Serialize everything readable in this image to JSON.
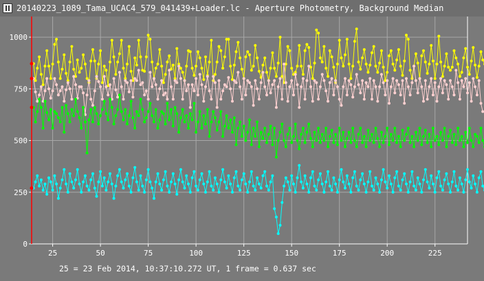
{
  "window": {
    "title": "20140223_1089_Tama_UCAC4_579_041439+Loader.lc - Aperture Photometry, Background Median",
    "icon": "lightcurve-app-icon"
  },
  "footer": {
    "text": "25 = 23 Feb 2014, 10:37:10.272 UT, 1 frame = 0.637 sec"
  },
  "colors": {
    "background": "#7a7a7a",
    "grid": "#a8a8a8",
    "axis": "#ffffff",
    "cursor_line": "#ff0000"
  },
  "chart_data": {
    "type": "line",
    "title": "",
    "xlabel": "",
    "ylabel": "",
    "xlim": [
      14,
      242
    ],
    "ylim": [
      0,
      1100
    ],
    "grid": true,
    "x_ticks": [
      25,
      50,
      75,
      100,
      125,
      150,
      175,
      200,
      225
    ],
    "y_ticks": [
      0,
      250,
      500,
      750,
      1000
    ],
    "series": [
      {
        "color": "#ffff00",
        "x_start": 15,
        "values": [
          872,
          790,
          850,
          905,
          820,
          770,
          860,
          935,
          860,
          800,
          870,
          965,
          990,
          880,
          800,
          845,
          915,
          825,
          790,
          880,
          955,
          845,
          810,
          890,
          830,
          850,
          915,
          870,
          800,
          780,
          885,
          940,
          885,
          800,
          870,
          935,
          780,
          860,
          840,
          765,
          880,
          985,
          905,
          820,
          880,
          920,
          985,
          850,
          800,
          870,
          955,
          835,
          790,
          900,
          865,
          985,
          905,
          840,
          835,
          905,
          1010,
          990,
          880,
          800,
          850,
          870,
          940,
          860,
          780,
          820,
          880,
          910,
          845,
          865,
          800,
          945,
          870,
          850,
          830,
          790,
          860,
          935,
          930,
          850,
          815,
          860,
          930,
          900,
          850,
          795,
          905,
          815,
          880,
          985,
          790,
          820,
          880,
          955,
          935,
          850,
          905,
          990,
          990,
          860,
          795,
          865,
          930,
          975,
          900,
          845,
          800,
          905,
          930,
          915,
          840,
          860,
          960,
          900,
          835,
          805,
          865,
          900,
          830,
          790,
          850,
          925,
          850,
          810,
          875,
          1000,
          810,
          780,
          870,
          955,
          935,
          850,
          820,
          830,
          860,
          960,
          860,
          820,
          935,
          965,
          950,
          855,
          800,
          875,
          1035,
          1020,
          900,
          880,
          955,
          850,
          810,
          935,
          905,
          855,
          780,
          870,
          985,
          900,
          860,
          915,
          990,
          870,
          800,
          860,
          980,
          1040,
          880,
          845,
          900,
          940,
          870,
          830,
          865,
          925,
          955,
          860,
          830,
          875,
          935,
          855,
          790,
          830,
          910,
          935,
          870,
          840,
          890,
          940,
          860,
          815,
          885,
          1010,
          990,
          840,
          800,
          860,
          920,
          875,
          800,
          910,
          935,
          880,
          825,
          870,
          960,
          885,
          800,
          870,
          1005,
          880,
          810,
          860,
          920,
          855,
          840,
          855,
          935,
          900,
          870,
          810,
          830,
          900,
          945,
          855,
          820,
          885,
          950,
          865,
          805,
          860,
          930,
          890,
          870,
          785,
          830,
          905
        ]
      },
      {
        "color": "#ffd0d0",
        "x_start": 15,
        "values": [
          800,
          735,
          690,
          720,
          760,
          690,
          740,
          800,
          750,
          705,
          740,
          800,
          770,
          720,
          740,
          760,
          690,
          745,
          780,
          750,
          700,
          810,
          770,
          705,
          760,
          760,
          730,
          625,
          720,
          790,
          700,
          670,
          740,
          810,
          785,
          760,
          700,
          810,
          760,
          720,
          770,
          700,
          800,
          745,
          710,
          830,
          760,
          700,
          790,
          780,
          735,
          790,
          710,
          800,
          790,
          840,
          770,
          780,
          720,
          740,
          700,
          830,
          760,
          800,
          770,
          700,
          750,
          790,
          720,
          730,
          700,
          840,
          760,
          700,
          790,
          780,
          860,
          800,
          700,
          790,
          740,
          770,
          660,
          770,
          740,
          800,
          720,
          820,
          770,
          690,
          760,
          810,
          740,
          700,
          810,
          780,
          660,
          790,
          700,
          740,
          770,
          760,
          805,
          750,
          690,
          790,
          780,
          830,
          760,
          700,
          800,
          720,
          790,
          780,
          760,
          670,
          790,
          750,
          700,
          780,
          830,
          760,
          720,
          790,
          730,
          770,
          790,
          660,
          760,
          800,
          700,
          870,
          780,
          690,
          760,
          790,
          720,
          820,
          770,
          660,
          760,
          800,
          700,
          790,
          860,
          760,
          690,
          790,
          780,
          700,
          760,
          820,
          790,
          740,
          690,
          780,
          800,
          720,
          790,
          760,
          700,
          670,
          760,
          800,
          720,
          790,
          770,
          710,
          760,
          820,
          770,
          730,
          790,
          700,
          780,
          760,
          800,
          700,
          790,
          760,
          690,
          760,
          820,
          780,
          720,
          790,
          680,
          760,
          800,
          730,
          790,
          770,
          720,
          790,
          680,
          800,
          760,
          720,
          780,
          860,
          790,
          730,
          800,
          760,
          690,
          790,
          700,
          760,
          800,
          720,
          780,
          690,
          760,
          800,
          730,
          790,
          770,
          700,
          790,
          760,
          720,
          840,
          780,
          700,
          790,
          760,
          800,
          730,
          780,
          690,
          800,
          760,
          720,
          790,
          680,
          640
        ]
      },
      {
        "color": "#00ff00",
        "x_start": 15,
        "values": [
          660,
          590,
          640,
          700,
          660,
          560,
          690,
          635,
          600,
          650,
          560,
          640,
          630,
          610,
          590,
          660,
          540,
          670,
          630,
          590,
          650,
          620,
          700,
          640,
          610,
          560,
          660,
          590,
          440,
          600,
          650,
          590,
          660,
          630,
          580,
          620,
          650,
          690,
          630,
          600,
          700,
          660,
          580,
          620,
          650,
          720,
          640,
          600,
          650,
          580,
          620,
          690,
          610,
          560,
          640,
          620,
          700,
          650,
          590,
          610,
          640,
          680,
          620,
          590,
          650,
          560,
          600,
          640,
          630,
          580,
          680,
          600,
          650,
          570,
          660,
          630,
          540,
          610,
          650,
          590,
          620,
          560,
          630,
          600,
          680,
          540,
          590,
          640,
          560,
          620,
          580,
          650,
          520,
          590,
          640,
          610,
          550,
          590,
          640,
          520,
          570,
          620,
          560,
          600,
          540,
          610,
          480,
          560,
          590,
          520,
          570,
          500,
          540,
          600,
          480,
          560,
          520,
          590,
          470,
          540,
          510,
          560,
          490,
          530,
          570,
          480,
          560,
          420,
          500,
          540,
          580,
          500,
          470,
          530,
          560,
          490,
          520,
          580,
          500,
          460,
          530,
          560,
          490,
          540,
          580,
          510,
          470,
          540,
          500,
          560,
          490,
          530,
          500,
          560,
          470,
          520,
          550,
          490,
          530,
          480,
          560,
          500,
          540,
          470,
          510,
          540,
          490,
          560,
          500,
          470,
          530,
          560,
          490,
          520,
          470,
          550,
          500,
          530,
          490,
          560,
          510,
          470,
          540,
          490,
          520,
          560,
          480,
          530,
          500,
          560,
          490,
          520,
          470,
          550,
          500,
          530,
          560,
          490,
          520,
          470,
          540,
          500,
          560,
          480,
          520,
          550,
          490,
          530,
          470,
          560,
          500,
          520,
          480,
          540,
          500,
          560,
          470,
          520,
          550,
          490,
          530,
          480,
          560,
          500,
          520,
          470,
          540,
          490,
          560,
          500,
          470,
          530,
          520,
          490,
          560,
          500,
          470,
          540,
          510
        ]
      },
      {
        "color": "#00ffff",
        "x_start": 15,
        "values": [
          270,
          300,
          330,
          280,
          310,
          260,
          290,
          240,
          320,
          300,
          260,
          330,
          290,
          220,
          270,
          310,
          360,
          290,
          250,
          340,
          300,
          270,
          310,
          360,
          290,
          250,
          300,
          330,
          280,
          260,
          310,
          340,
          270,
          230,
          300,
          350,
          280,
          320,
          260,
          300,
          340,
          290,
          220,
          280,
          330,
          360,
          300,
          270,
          310,
          340,
          280,
          250,
          320,
          370,
          300,
          260,
          330,
          280,
          250,
          310,
          360,
          300,
          270,
          220,
          300,
          340,
          290,
          260,
          310,
          350,
          280,
          250,
          300,
          340,
          290,
          240,
          310,
          360,
          300,
          270,
          330,
          290,
          250,
          320,
          350,
          280,
          260,
          310,
          340,
          290,
          250,
          300,
          350,
          280,
          260,
          320,
          290,
          250,
          310,
          360,
          300,
          270,
          330,
          290,
          250,
          320,
          350,
          280,
          260,
          310,
          340,
          290,
          250,
          300,
          350,
          280,
          260,
          320,
          290,
          270,
          330,
          350,
          280,
          260,
          300,
          330,
          170,
          130,
          50,
          90,
          200,
          280,
          320,
          300,
          260,
          330,
          290,
          250,
          320,
          380,
          300,
          270,
          330,
          290,
          250,
          320,
          350,
          280,
          260,
          310,
          340,
          290,
          250,
          300,
          350,
          280,
          260,
          320,
          290,
          250,
          310,
          360,
          300,
          270,
          330,
          290,
          250,
          320,
          350,
          280,
          260,
          310,
          340,
          290,
          250,
          300,
          350,
          280,
          260,
          320,
          290,
          250,
          310,
          360,
          300,
          270,
          330,
          290,
          250,
          320,
          350,
          280,
          260,
          310,
          340,
          290,
          250,
          300,
          350,
          280,
          260,
          320,
          290,
          250,
          310,
          360,
          300,
          270,
          330,
          290,
          250,
          320,
          350,
          280,
          260,
          310,
          340,
          290,
          250,
          300,
          350,
          280,
          260,
          320,
          290,
          250,
          310,
          360,
          300,
          270,
          330,
          290,
          250,
          320,
          350,
          280,
          260,
          310
        ]
      }
    ],
    "cursor_x": 14
  }
}
